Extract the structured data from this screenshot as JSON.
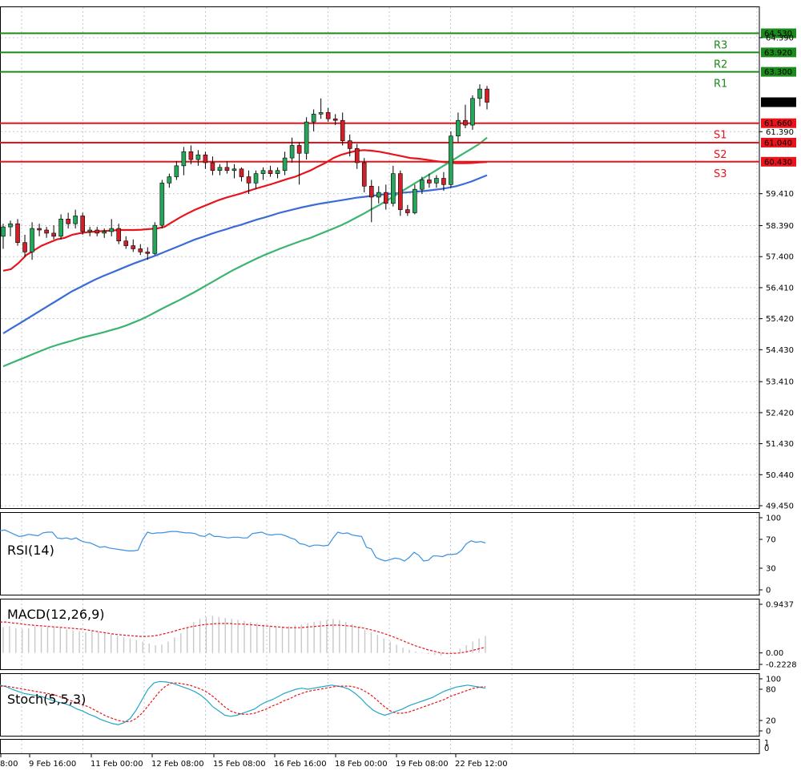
{
  "colors": {
    "bull": "#26a65b",
    "bear": "#d0202a",
    "resistance": "#1a8a1a",
    "support": "#e8141c",
    "ma_fast": "#e8141c",
    "ma_mid": "#3a6bd6",
    "ma_slow": "#3cb371",
    "rsi": "#3a8fe0",
    "macd_hist": "#c8c8c8",
    "macd_signal": "#e8141c",
    "stoch_main": "#21a8c8",
    "stoch_signal": "#e8141c",
    "grid": "#c0c8d0"
  },
  "chart_data": {
    "type": "candlestick",
    "price_axis": {
      "ticks": [
        "64.390",
        "61.390",
        "59.410",
        "58.390",
        "57.400",
        "56.410",
        "55.420",
        "54.430",
        "53.410",
        "52.420",
        "51.430",
        "50.440",
        "49.450"
      ],
      "ylim": [
        49.45,
        65.0
      ]
    },
    "time_axis": {
      "ticks": [
        "8:00",
        "9 Feb 16:00",
        "11 Feb 00:00",
        "12 Feb 08:00",
        "15 Feb 08:00",
        "16 Feb 16:00",
        "18 Feb 00:00",
        "19 Feb 08:00",
        "22 Feb 12:00"
      ]
    },
    "current_price": "62.330",
    "levels": [
      {
        "name": "R3",
        "value": 64.53,
        "label": "64.530",
        "kind": "resistance"
      },
      {
        "name": "R2",
        "value": 63.92,
        "label": "63.920",
        "kind": "resistance"
      },
      {
        "name": "R1",
        "value": 63.3,
        "label": "63.300",
        "kind": "resistance"
      },
      {
        "name": "S1",
        "value": 61.66,
        "label": "61.660",
        "kind": "support"
      },
      {
        "name": "S2",
        "value": 61.04,
        "label": "61.040",
        "kind": "support"
      },
      {
        "name": "S3",
        "value": 60.43,
        "label": "60.430",
        "kind": "support"
      }
    ],
    "candles": [
      {
        "o": 58.05,
        "h": 58.45,
        "l": 57.65,
        "c": 58.35
      },
      {
        "o": 58.35,
        "h": 58.55,
        "l": 58.05,
        "c": 58.45
      },
      {
        "o": 58.45,
        "h": 58.6,
        "l": 57.75,
        "c": 57.85
      },
      {
        "o": 57.85,
        "h": 58.1,
        "l": 57.4,
        "c": 57.55
      },
      {
        "o": 57.55,
        "h": 58.5,
        "l": 57.3,
        "c": 58.3
      },
      {
        "o": 58.3,
        "h": 58.45,
        "l": 58.05,
        "c": 58.25
      },
      {
        "o": 58.25,
        "h": 58.35,
        "l": 58.0,
        "c": 58.15
      },
      {
        "o": 58.15,
        "h": 58.4,
        "l": 57.95,
        "c": 58.05
      },
      {
        "o": 58.05,
        "h": 58.75,
        "l": 57.95,
        "c": 58.6
      },
      {
        "o": 58.6,
        "h": 58.8,
        "l": 58.3,
        "c": 58.45
      },
      {
        "o": 58.45,
        "h": 58.9,
        "l": 58.3,
        "c": 58.7
      },
      {
        "o": 58.7,
        "h": 58.8,
        "l": 58.1,
        "c": 58.2
      },
      {
        "o": 58.2,
        "h": 58.35,
        "l": 58.05,
        "c": 58.25
      },
      {
        "o": 58.25,
        "h": 58.35,
        "l": 58.05,
        "c": 58.15
      },
      {
        "o": 58.15,
        "h": 58.3,
        "l": 58.0,
        "c": 58.2
      },
      {
        "o": 58.2,
        "h": 58.6,
        "l": 58.05,
        "c": 58.3
      },
      {
        "o": 58.3,
        "h": 58.45,
        "l": 57.8,
        "c": 57.9
      },
      {
        "o": 57.9,
        "h": 58.05,
        "l": 57.65,
        "c": 57.75
      },
      {
        "o": 57.75,
        "h": 57.95,
        "l": 57.55,
        "c": 57.65
      },
      {
        "o": 57.65,
        "h": 57.8,
        "l": 57.45,
        "c": 57.55
      },
      {
        "o": 57.55,
        "h": 57.7,
        "l": 57.3,
        "c": 57.5
      },
      {
        "o": 57.5,
        "h": 58.5,
        "l": 57.45,
        "c": 58.4
      },
      {
        "o": 58.4,
        "h": 59.85,
        "l": 58.3,
        "c": 59.75
      },
      {
        "o": 59.75,
        "h": 60.05,
        "l": 59.6,
        "c": 59.95
      },
      {
        "o": 59.95,
        "h": 60.45,
        "l": 59.85,
        "c": 60.3
      },
      {
        "o": 60.3,
        "h": 60.9,
        "l": 60.0,
        "c": 60.75
      },
      {
        "o": 60.75,
        "h": 60.95,
        "l": 60.35,
        "c": 60.5
      },
      {
        "o": 60.5,
        "h": 60.8,
        "l": 60.3,
        "c": 60.65
      },
      {
        "o": 60.65,
        "h": 60.75,
        "l": 60.2,
        "c": 60.4
      },
      {
        "o": 60.4,
        "h": 60.6,
        "l": 60.0,
        "c": 60.15
      },
      {
        "o": 60.15,
        "h": 60.35,
        "l": 60.0,
        "c": 60.25
      },
      {
        "o": 60.25,
        "h": 60.45,
        "l": 60.05,
        "c": 60.15
      },
      {
        "o": 60.15,
        "h": 60.35,
        "l": 59.9,
        "c": 60.2
      },
      {
        "o": 60.2,
        "h": 60.25,
        "l": 59.8,
        "c": 59.95
      },
      {
        "o": 59.95,
        "h": 60.15,
        "l": 59.4,
        "c": 59.75
      },
      {
        "o": 59.75,
        "h": 60.15,
        "l": 59.55,
        "c": 60.05
      },
      {
        "o": 60.05,
        "h": 60.25,
        "l": 59.85,
        "c": 60.15
      },
      {
        "o": 60.15,
        "h": 60.3,
        "l": 59.95,
        "c": 60.05
      },
      {
        "o": 60.05,
        "h": 60.25,
        "l": 59.9,
        "c": 60.15
      },
      {
        "o": 60.15,
        "h": 60.75,
        "l": 60.0,
        "c": 60.55
      },
      {
        "o": 60.55,
        "h": 61.2,
        "l": 60.4,
        "c": 60.95
      },
      {
        "o": 60.95,
        "h": 61.05,
        "l": 59.7,
        "c": 60.7
      },
      {
        "o": 60.7,
        "h": 61.85,
        "l": 60.5,
        "c": 61.7
      },
      {
        "o": 61.7,
        "h": 62.1,
        "l": 61.4,
        "c": 61.95
      },
      {
        "o": 61.95,
        "h": 62.45,
        "l": 61.8,
        "c": 62.0
      },
      {
        "o": 62.0,
        "h": 62.15,
        "l": 61.7,
        "c": 61.8
      },
      {
        "o": 61.8,
        "h": 61.95,
        "l": 61.6,
        "c": 61.75
      },
      {
        "o": 61.75,
        "h": 62.0,
        "l": 60.95,
        "c": 61.1
      },
      {
        "o": 61.1,
        "h": 61.3,
        "l": 60.6,
        "c": 60.85
      },
      {
        "o": 60.85,
        "h": 61.0,
        "l": 60.2,
        "c": 60.4
      },
      {
        "o": 60.4,
        "h": 60.55,
        "l": 59.45,
        "c": 59.65
      },
      {
        "o": 59.65,
        "h": 59.85,
        "l": 58.5,
        "c": 59.3
      },
      {
        "o": 59.3,
        "h": 59.65,
        "l": 59.1,
        "c": 59.45
      },
      {
        "o": 59.45,
        "h": 59.7,
        "l": 58.9,
        "c": 59.1
      },
      {
        "o": 59.1,
        "h": 60.3,
        "l": 59.0,
        "c": 60.05
      },
      {
        "o": 60.05,
        "h": 60.15,
        "l": 58.7,
        "c": 58.9
      },
      {
        "o": 58.9,
        "h": 59.05,
        "l": 58.7,
        "c": 58.8
      },
      {
        "o": 58.8,
        "h": 59.7,
        "l": 58.75,
        "c": 59.55
      },
      {
        "o": 59.55,
        "h": 59.95,
        "l": 59.4,
        "c": 59.85
      },
      {
        "o": 59.85,
        "h": 60.05,
        "l": 59.6,
        "c": 59.75
      },
      {
        "o": 59.75,
        "h": 60.0,
        "l": 59.6,
        "c": 59.9
      },
      {
        "o": 59.9,
        "h": 60.1,
        "l": 59.5,
        "c": 59.7
      },
      {
        "o": 59.7,
        "h": 61.4,
        "l": 59.6,
        "c": 61.25
      },
      {
        "o": 61.25,
        "h": 62.0,
        "l": 61.05,
        "c": 61.75
      },
      {
        "o": 61.75,
        "h": 62.25,
        "l": 61.5,
        "c": 61.6
      },
      {
        "o": 61.6,
        "h": 62.55,
        "l": 61.45,
        "c": 62.45
      },
      {
        "o": 62.45,
        "h": 62.9,
        "l": 62.2,
        "c": 62.75
      },
      {
        "o": 62.75,
        "h": 62.85,
        "l": 62.1,
        "c": 62.33
      }
    ],
    "moving_averages": [
      {
        "color_key": "ma_fast",
        "values": [
          56.95,
          57.0,
          57.2,
          57.45,
          57.6,
          57.75,
          57.85,
          57.95,
          58.0,
          58.1,
          58.15,
          58.18,
          58.2,
          58.22,
          58.23,
          58.25,
          58.25,
          58.25,
          58.26,
          58.28,
          58.3,
          58.35,
          58.5,
          58.65,
          58.78,
          58.9,
          59.0,
          59.1,
          59.2,
          59.28,
          59.35,
          59.42,
          59.5,
          59.58,
          59.65,
          59.72,
          59.8,
          59.88,
          59.95,
          60.05,
          60.15,
          60.28,
          60.4,
          60.55,
          60.65,
          60.72,
          60.78,
          60.8,
          60.78,
          60.75,
          60.7,
          60.65,
          60.6,
          60.55,
          60.53,
          60.5,
          60.46,
          60.43,
          60.4,
          60.38,
          60.38,
          60.39,
          60.41,
          60.42
        ]
      },
      {
        "color_key": "ma_mid",
        "values": [
          54.95,
          55.1,
          55.25,
          55.4,
          55.55,
          55.7,
          55.85,
          56.0,
          56.15,
          56.3,
          56.42,
          56.55,
          56.67,
          56.78,
          56.88,
          56.98,
          57.08,
          57.18,
          57.27,
          57.36,
          57.45,
          57.55,
          57.65,
          57.75,
          57.85,
          57.95,
          58.03,
          58.12,
          58.2,
          58.27,
          58.35,
          58.42,
          58.5,
          58.58,
          58.65,
          58.72,
          58.8,
          58.86,
          58.92,
          58.98,
          59.03,
          59.08,
          59.12,
          59.16,
          59.2,
          59.24,
          59.28,
          59.31,
          59.34,
          59.37,
          59.4,
          59.42,
          59.44,
          59.46,
          59.48,
          59.5,
          59.53,
          59.56,
          59.6,
          59.65,
          59.72,
          59.8,
          59.9,
          60.0
        ]
      },
      {
        "color_key": "ma_slow",
        "values": [
          53.9,
          54.0,
          54.1,
          54.2,
          54.3,
          54.4,
          54.5,
          54.58,
          54.65,
          54.72,
          54.8,
          54.86,
          54.92,
          54.98,
          55.05,
          55.12,
          55.2,
          55.3,
          55.4,
          55.52,
          55.65,
          55.78,
          55.9,
          56.02,
          56.15,
          56.28,
          56.42,
          56.56,
          56.7,
          56.84,
          56.98,
          57.1,
          57.22,
          57.34,
          57.45,
          57.55,
          57.65,
          57.74,
          57.83,
          57.92,
          58.0,
          58.1,
          58.2,
          58.3,
          58.4,
          58.52,
          58.65,
          58.78,
          58.92,
          59.05,
          59.2,
          59.35,
          59.5,
          59.65,
          59.8,
          59.95,
          60.1,
          60.25,
          60.4,
          60.55,
          60.7,
          60.85,
          61.0,
          61.2
        ]
      }
    ],
    "indicators": [
      {
        "name": "RSI(14)",
        "ticks": [
          "100",
          "70",
          "30",
          "0"
        ],
        "ylim": [
          0,
          100
        ],
        "values": [
          82,
          83,
          80,
          77,
          74,
          75,
          77,
          76,
          75,
          79,
          80,
          80,
          72,
          71,
          72,
          70,
          72,
          68,
          66,
          65,
          62,
          59,
          60,
          58,
          57,
          56,
          55,
          54,
          54,
          55,
          70,
          80,
          78,
          79,
          79,
          80,
          81,
          81,
          80,
          79,
          79,
          78,
          75,
          74,
          78,
          74,
          74,
          73,
          72,
          73,
          73,
          72,
          72,
          78,
          79,
          80,
          77,
          76,
          77,
          77,
          75,
          72,
          70,
          64,
          63,
          60,
          62,
          62,
          61,
          62,
          72,
          80,
          78,
          79,
          76,
          75,
          74,
          59,
          57,
          45,
          42,
          40,
          42,
          44,
          43,
          40,
          45,
          52,
          48,
          40,
          41,
          47,
          47,
          46,
          49,
          49,
          50,
          55,
          64,
          68,
          66,
          67,
          65
        ]
      },
      {
        "name": "MACD(12,26,9)",
        "ticks": [
          "0.9437",
          "0.00",
          "-0.2228"
        ],
        "ylim": [
          -0.2228,
          0.9437
        ],
        "histogram": [
          0.5,
          0.52,
          0.48,
          0.46,
          0.48,
          0.52,
          0.5,
          0.51,
          0.5,
          0.48,
          0.46,
          0.44,
          0.42,
          0.4,
          0.42,
          0.4,
          0.38,
          0.36,
          0.33,
          0.3,
          0.28,
          0.25,
          0.22,
          0.18,
          0.15,
          0.16,
          0.22,
          0.3,
          0.38,
          0.5,
          0.6,
          0.66,
          0.7,
          0.72,
          0.7,
          0.68,
          0.66,
          0.64,
          0.62,
          0.6,
          0.58,
          0.55,
          0.52,
          0.5,
          0.5,
          0.52,
          0.54,
          0.55,
          0.58,
          0.6,
          0.62,
          0.64,
          0.66,
          0.64,
          0.6,
          0.56,
          0.5,
          0.45,
          0.4,
          0.35,
          0.28,
          0.22,
          0.16,
          0.1,
          0.06,
          0.03,
          0.01,
          -0.02,
          -0.04,
          -0.05,
          -0.03,
          0.02,
          0.08,
          0.15,
          0.22,
          0.28,
          0.33
        ],
        "signal": [
          0.6,
          0.6,
          0.58,
          0.57,
          0.55,
          0.54,
          0.53,
          0.52,
          0.51,
          0.5,
          0.49,
          0.48,
          0.47,
          0.46,
          0.44,
          0.42,
          0.4,
          0.38,
          0.36,
          0.35,
          0.34,
          0.33,
          0.32,
          0.32,
          0.33,
          0.35,
          0.38,
          0.41,
          0.45,
          0.48,
          0.51,
          0.53,
          0.55,
          0.56,
          0.57,
          0.57,
          0.57,
          0.56,
          0.56,
          0.55,
          0.54,
          0.53,
          0.52,
          0.51,
          0.5,
          0.49,
          0.49,
          0.49,
          0.5,
          0.51,
          0.52,
          0.53,
          0.54,
          0.54,
          0.53,
          0.52,
          0.5,
          0.48,
          0.45,
          0.42,
          0.38,
          0.34,
          0.29,
          0.24,
          0.19,
          0.14,
          0.1,
          0.06,
          0.03,
          0.0,
          -0.01,
          -0.01,
          0.0,
          0.02,
          0.05,
          0.08,
          0.11
        ]
      },
      {
        "name": "Stoch(5,5,3)",
        "ticks": [
          "100",
          "80",
          "20",
          "0"
        ],
        "ylim": [
          0,
          100
        ],
        "main": [
          88,
          85,
          80,
          76,
          72,
          70,
          68,
          66,
          62,
          58,
          55,
          52,
          48,
          42,
          38,
          32,
          28,
          22,
          18,
          14,
          12,
          16,
          24,
          40,
          60,
          80,
          92,
          95,
          94,
          92,
          88,
          84,
          80,
          75,
          68,
          58,
          46,
          38,
          30,
          28,
          30,
          34,
          38,
          42,
          50,
          56,
          60,
          66,
          72,
          76,
          80,
          82,
          80,
          82,
          84,
          86,
          88,
          86,
          84,
          80,
          72,
          62,
          50,
          40,
          34,
          30,
          34,
          38,
          42,
          48,
          52,
          56,
          60,
          64,
          70,
          76,
          80,
          84,
          86,
          88,
          86,
          84,
          82
        ],
        "signal": [
          86,
          86,
          84,
          82,
          80,
          78,
          76,
          74,
          72,
          70,
          66,
          62,
          58,
          54,
          50,
          46,
          40,
          34,
          28,
          24,
          20,
          18,
          18,
          24,
          34,
          48,
          62,
          76,
          86,
          92,
          92,
          90,
          88,
          84,
          80,
          74,
          66,
          56,
          46,
          38,
          34,
          32,
          32,
          34,
          38,
          42,
          48,
          52,
          58,
          62,
          68,
          72,
          76,
          78,
          80,
          82,
          84,
          86,
          86,
          86,
          84,
          80,
          74,
          66,
          56,
          46,
          38,
          34,
          34,
          36,
          40,
          44,
          48,
          52,
          56,
          60,
          66,
          70,
          74,
          78,
          82,
          84,
          85
        ]
      }
    ]
  }
}
